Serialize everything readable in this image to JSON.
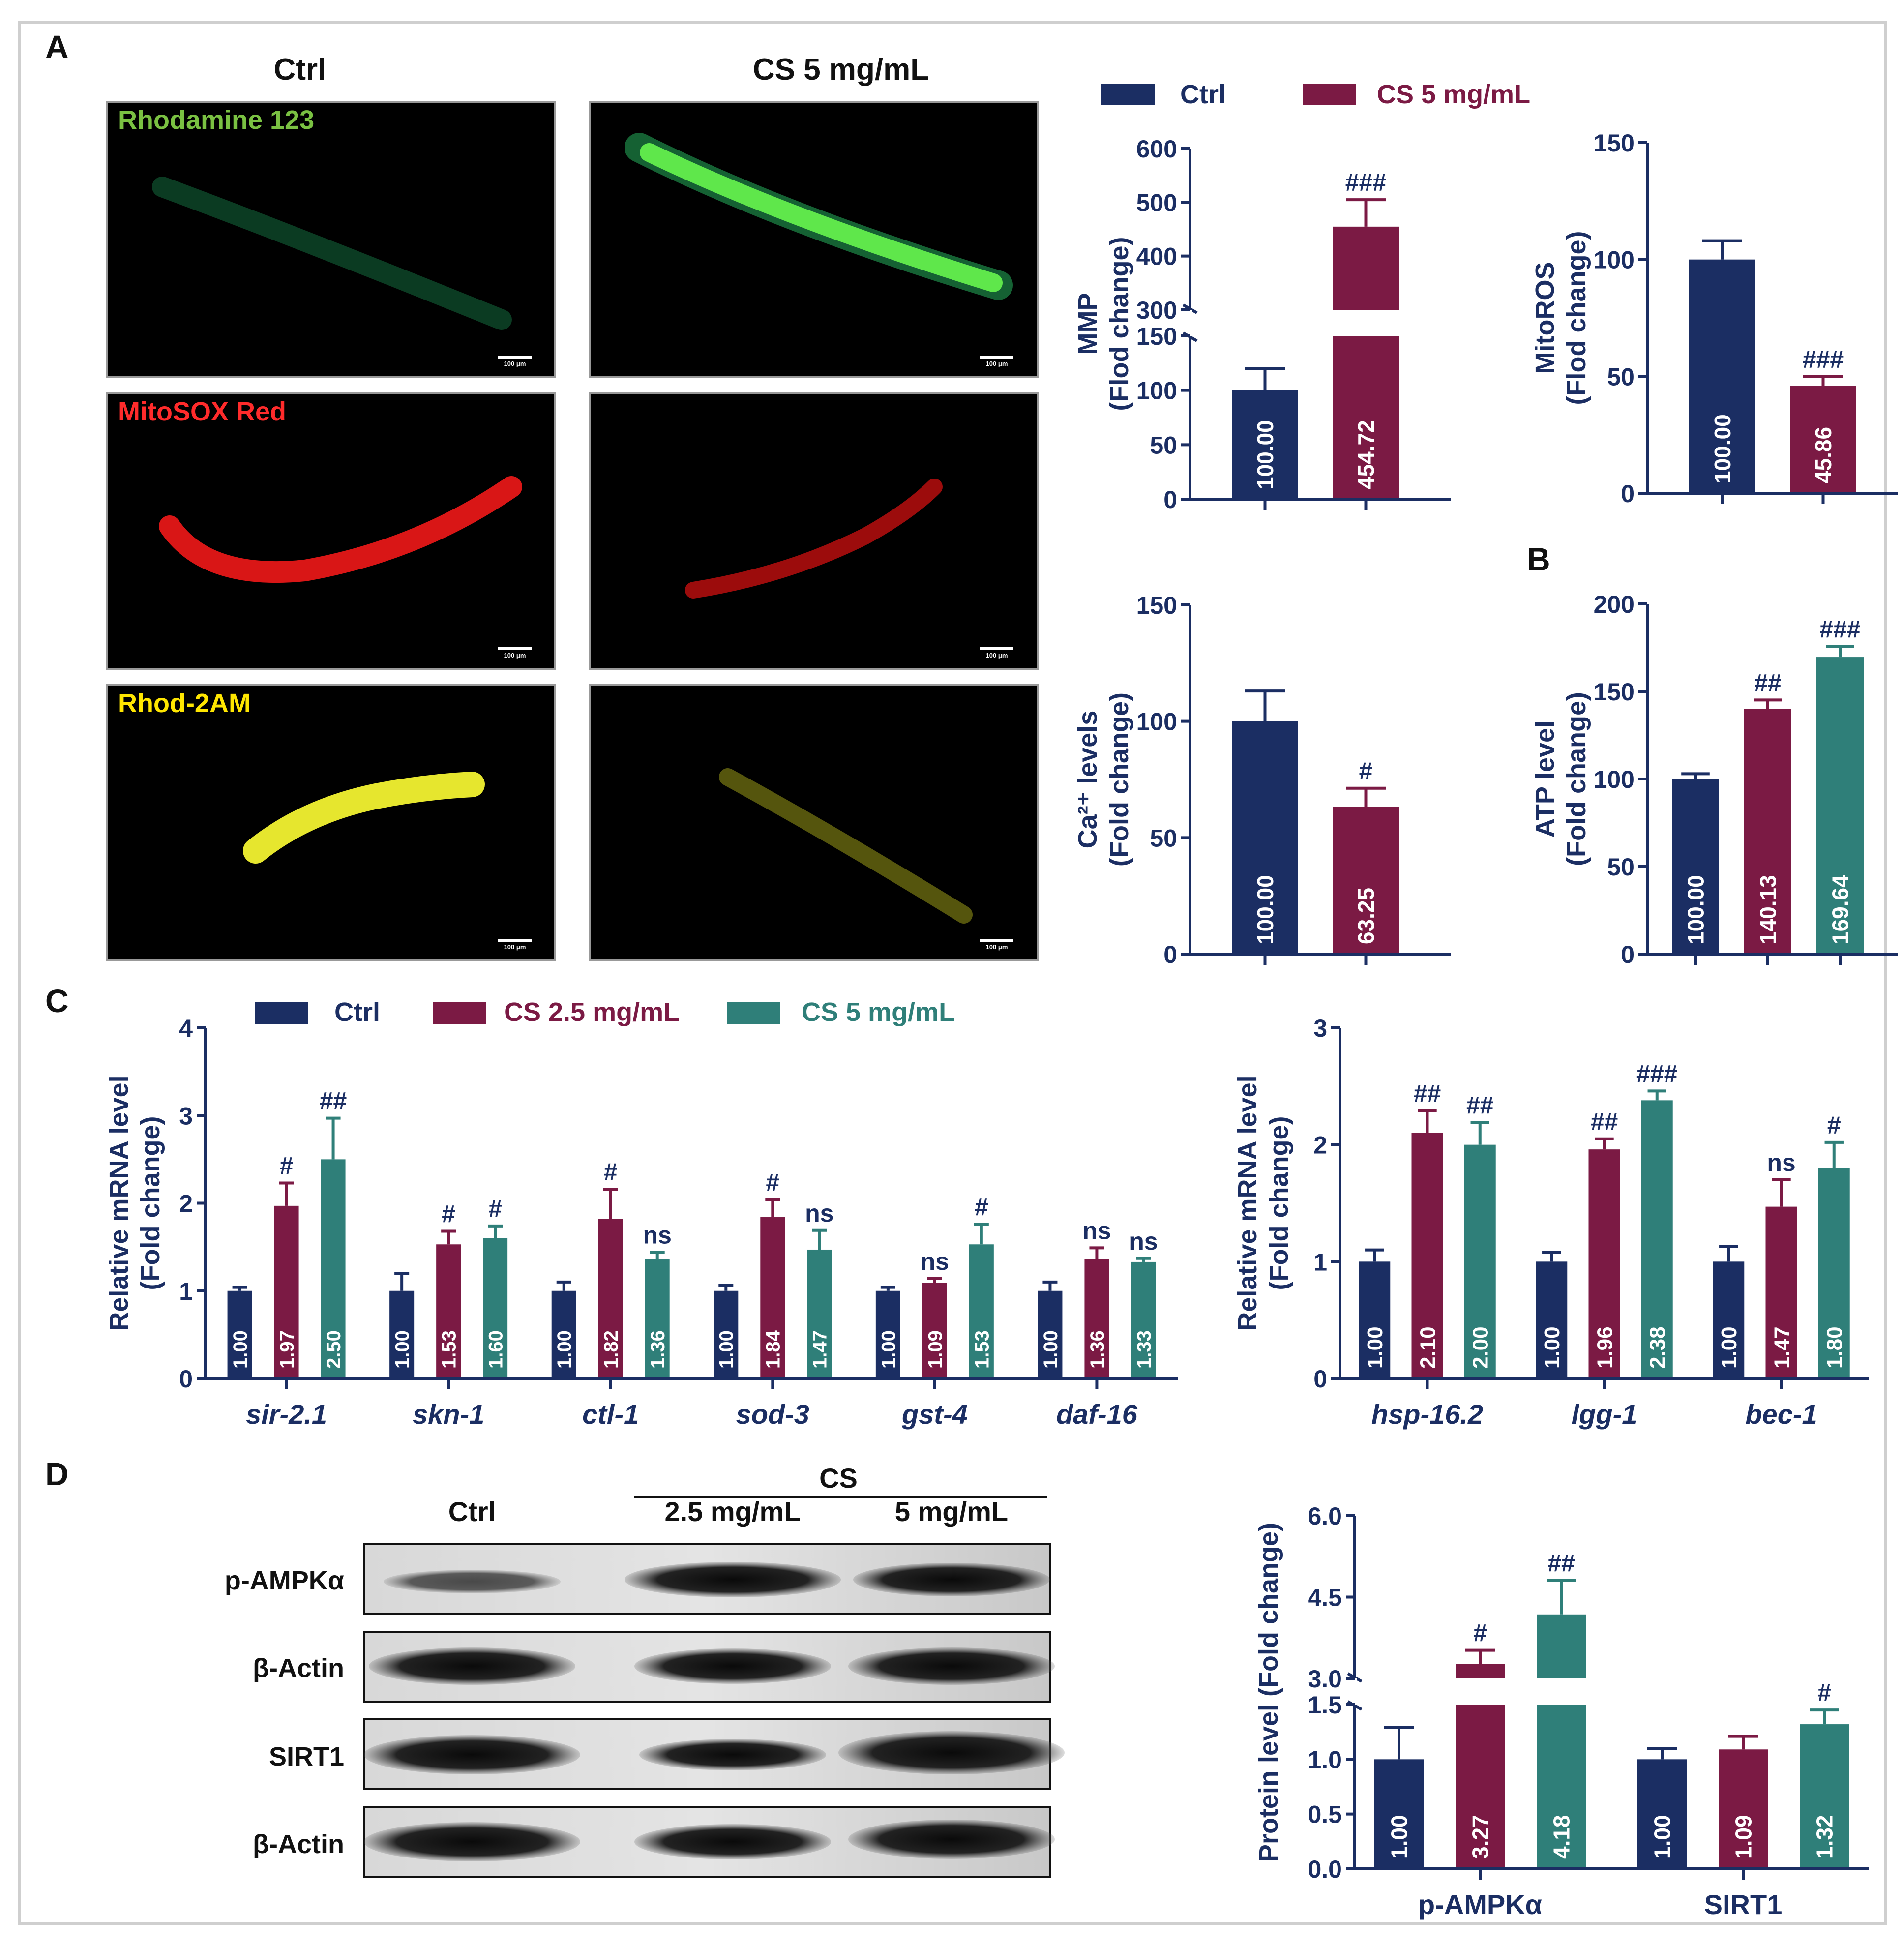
{
  "colors": {
    "ctrl": "#1b2e63",
    "cs25": "#7b1a44",
    "cs5": "#2f7f79",
    "cs5_2group": "#7b1a44",
    "axis": "#1b2e63",
    "green_text": "#7ac142",
    "red_text": "#ff2b2b",
    "yellow_text": "#ffe600"
  },
  "panels": {
    "A": "A",
    "B": "B",
    "C": "C",
    "D": "D"
  },
  "panel_a": {
    "columns": [
      "Ctrl",
      "CS 5 mg/mL"
    ],
    "rows": [
      {
        "label": "Rhodamine 123",
        "color": "green"
      },
      {
        "label": "MitoSOX Red",
        "color": "red"
      },
      {
        "label": "Rhod-2AM",
        "color": "yellow"
      }
    ],
    "scale_bar": "100 μm"
  },
  "legend_a": [
    "Ctrl",
    "CS 5 mg/mL"
  ],
  "legend_c": [
    "Ctrl",
    "CS 2.5 mg/mL",
    "CS 5 mg/mL"
  ],
  "western": {
    "group_label": "CS",
    "lane_labels": [
      "Ctrl",
      "2.5 mg/mL",
      "5 mg/mL"
    ],
    "blot_labels": [
      "p-AMPKα",
      "β-Actin",
      "SIRT1",
      "β-Actin"
    ]
  },
  "chart_data": [
    {
      "id": "mmp",
      "type": "bar",
      "title": "",
      "ylabel": [
        "MMP",
        "(Flod change)"
      ],
      "categories": [
        "Ctrl",
        "CS 5 mg/mL"
      ],
      "values": [
        100.0,
        454.72
      ],
      "errors": [
        20,
        50
      ],
      "value_labels": [
        "100.00",
        "454.72"
      ],
      "significance": [
        "",
        "###"
      ],
      "axis_break": {
        "lower": [
          0,
          150
        ],
        "upper": [
          300,
          600
        ]
      },
      "yticks": [
        0,
        50,
        100,
        150,
        300,
        400,
        500,
        600
      ]
    },
    {
      "id": "mitoros",
      "type": "bar",
      "title": "",
      "ylabel": [
        "MitoROS",
        "(Flod change)"
      ],
      "categories": [
        "Ctrl",
        "CS 5 mg/mL"
      ],
      "values": [
        100.0,
        45.86
      ],
      "errors": [
        8,
        4
      ],
      "value_labels": [
        "100.00",
        "45.86"
      ],
      "significance": [
        "",
        "###"
      ],
      "ylim": [
        0,
        150
      ],
      "yticks": [
        0,
        50,
        100,
        150
      ]
    },
    {
      "id": "ca",
      "type": "bar",
      "title": "",
      "ylabel": [
        "Ca²⁺ levels",
        "(Fold change)"
      ],
      "categories": [
        "Ctrl",
        "CS 5 mg/mL"
      ],
      "values": [
        100.0,
        63.25
      ],
      "errors": [
        13,
        8
      ],
      "value_labels": [
        "100.00",
        "63.25"
      ],
      "significance": [
        "",
        "#"
      ],
      "ylim": [
        0,
        150
      ],
      "yticks": [
        0,
        50,
        100,
        150
      ]
    },
    {
      "id": "atp",
      "type": "bar",
      "title": "",
      "ylabel": [
        "ATP level",
        "(Fold change)"
      ],
      "categories": [
        "Ctrl",
        "CS 2.5 mg/mL",
        "CS 5 mg/mL"
      ],
      "values": [
        100.0,
        140.13,
        169.64
      ],
      "errors": [
        3,
        5,
        6
      ],
      "value_labels": [
        "100.00",
        "140.13",
        "169.64"
      ],
      "significance": [
        "",
        "##",
        "###"
      ],
      "ylim": [
        0,
        200
      ],
      "yticks": [
        0,
        50,
        100,
        150,
        200
      ]
    },
    {
      "id": "mrna1",
      "type": "bar",
      "title": "",
      "ylabel": [
        "Relative mRNA level",
        "(Fold change)"
      ],
      "categories": [
        "sir-2.1",
        "skn-1",
        "ctl-1",
        "sod-3",
        "gst-4",
        "daf-16"
      ],
      "series": [
        {
          "name": "Ctrl",
          "values": [
            1.0,
            1.0,
            1.0,
            1.0,
            1.0,
            1.0
          ],
          "errors": [
            0.04,
            0.2,
            0.1,
            0.06,
            0.04,
            0.1
          ],
          "value_labels": [
            "1.00",
            "1.00",
            "1.00",
            "1.00",
            "1.00",
            "1.00"
          ],
          "significance": [
            "",
            "",
            "",
            "",
            "",
            ""
          ]
        },
        {
          "name": "CS 2.5 mg/mL",
          "values": [
            1.97,
            1.53,
            1.82,
            1.84,
            1.09,
            1.36
          ],
          "errors": [
            0.26,
            0.15,
            0.34,
            0.2,
            0.05,
            0.13
          ],
          "value_labels": [
            "1.97",
            "1.53",
            "1.82",
            "1.84",
            "1.09",
            "1.36"
          ],
          "significance": [
            "#",
            "#",
            "#",
            "#",
            "ns",
            "ns"
          ]
        },
        {
          "name": "CS 5 mg/mL",
          "values": [
            2.5,
            1.6,
            1.36,
            1.47,
            1.53,
            1.33
          ],
          "errors": [
            0.47,
            0.14,
            0.08,
            0.22,
            0.23,
            0.04
          ],
          "value_labels": [
            "2.50",
            "1.60",
            "1.36",
            "1.47",
            "1.53",
            "1.33"
          ],
          "significance": [
            "##",
            "#",
            "ns",
            "ns",
            "#",
            "ns"
          ]
        }
      ],
      "ylim": [
        0,
        4
      ],
      "yticks": [
        0,
        1,
        2,
        3,
        4
      ]
    },
    {
      "id": "mrna2",
      "type": "bar",
      "title": "",
      "ylabel": [
        "Relative mRNA level",
        "(Fold change)"
      ],
      "categories": [
        "hsp-16.2",
        "lgg-1",
        "bec-1"
      ],
      "series": [
        {
          "name": "Ctrl",
          "values": [
            1.0,
            1.0,
            1.0
          ],
          "errors": [
            0.1,
            0.08,
            0.13
          ],
          "value_labels": [
            "1.00",
            "1.00",
            "1.00"
          ],
          "significance": [
            "",
            "",
            ""
          ]
        },
        {
          "name": "CS 2.5 mg/mL",
          "values": [
            2.1,
            1.96,
            1.47
          ],
          "errors": [
            0.19,
            0.09,
            0.23
          ],
          "value_labels": [
            "2.10",
            "1.96",
            "1.47"
          ],
          "significance": [
            "##",
            "##",
            "ns"
          ]
        },
        {
          "name": "CS 5 mg/mL",
          "values": [
            2.0,
            2.38,
            1.8
          ],
          "errors": [
            0.19,
            0.08,
            0.22
          ],
          "value_labels": [
            "2.00",
            "2.38",
            "1.80"
          ],
          "significance": [
            "##",
            "###",
            "#"
          ]
        }
      ],
      "ylim": [
        0,
        3
      ],
      "yticks": [
        0,
        1,
        2,
        3
      ]
    },
    {
      "id": "protein",
      "type": "bar",
      "title": "",
      "ylabel": [
        "Protein level (Fold change)"
      ],
      "categories": [
        "p-AMPKα",
        "SIRT1"
      ],
      "series": [
        {
          "name": "Ctrl",
          "values": [
            1.0,
            1.0
          ],
          "errors": [
            0.29,
            0.1
          ],
          "value_labels": [
            "1.00",
            "1.00"
          ],
          "significance": [
            "",
            ""
          ]
        },
        {
          "name": "CS 2.5 mg/mL",
          "values": [
            3.27,
            1.09
          ],
          "errors": [
            0.25,
            0.12
          ],
          "value_labels": [
            "3.27",
            "1.09"
          ],
          "significance": [
            "#",
            ""
          ]
        },
        {
          "name": "CS 5 mg/mL",
          "values": [
            4.18,
            1.32
          ],
          "errors": [
            0.63,
            0.13
          ],
          "value_labels": [
            "4.18",
            "1.32"
          ],
          "significance": [
            "##",
            "#"
          ]
        }
      ],
      "axis_break": {
        "lower": [
          0,
          1.5
        ],
        "upper": [
          3.0,
          6.0
        ]
      },
      "yticks": [
        0.0,
        0.5,
        1.0,
        1.5,
        3.0,
        4.5,
        6.0
      ],
      "ytick_labels": [
        "0.0",
        "0.5",
        "1.0",
        "1.5",
        "3.0",
        "4.5",
        "6.0"
      ]
    }
  ]
}
